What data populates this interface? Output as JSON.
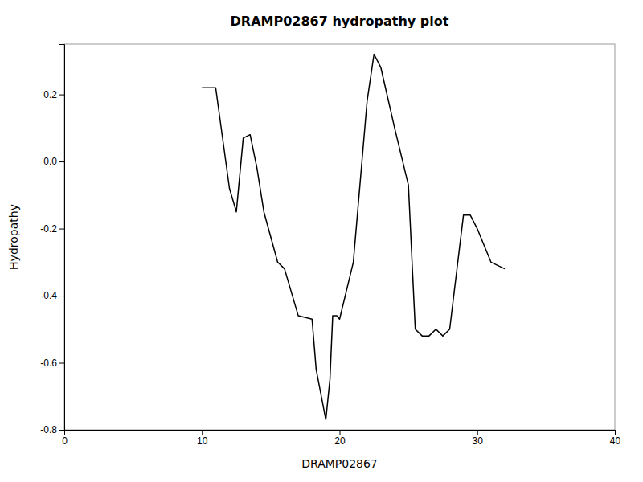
{
  "chart_data": {
    "type": "line",
    "title": "DRAMP02867 hydropathy plot",
    "xlabel": "DRAMP02867",
    "ylabel": "Hydropathy",
    "color": "#000000",
    "xlim": [
      0,
      40
    ],
    "ylim": [
      -0.8,
      0.35
    ],
    "xticks": [
      0,
      10,
      20,
      30,
      40
    ],
    "yticks": [
      -0.8,
      -0.6,
      -0.4,
      -0.2,
      {
        "value": 0.0,
        "label": "0.0"
      },
      0.2
    ],
    "x": [
      10,
      11,
      12,
      12.5,
      13,
      13.5,
      14,
      14.5,
      15.5,
      16,
      17,
      18,
      18.3,
      19,
      19.3,
      19.5,
      19.8,
      20,
      21,
      22,
      22.5,
      23,
      24,
      25,
      25.5,
      26,
      26.5,
      27,
      27.5,
      28,
      29,
      29.5,
      30,
      30.5,
      31,
      32
    ],
    "values": [
      0.22,
      0.22,
      -0.08,
      -0.15,
      0.07,
      0.08,
      -0.02,
      -0.15,
      -0.3,
      -0.32,
      -0.46,
      -0.47,
      -0.62,
      -0.77,
      -0.65,
      -0.46,
      -0.46,
      -0.47,
      -0.3,
      0.18,
      0.32,
      0.28,
      0.1,
      -0.07,
      -0.5,
      -0.52,
      -0.52,
      -0.5,
      -0.52,
      -0.5,
      -0.16,
      -0.16,
      -0.2,
      -0.25,
      -0.3,
      -0.32
    ]
  }
}
